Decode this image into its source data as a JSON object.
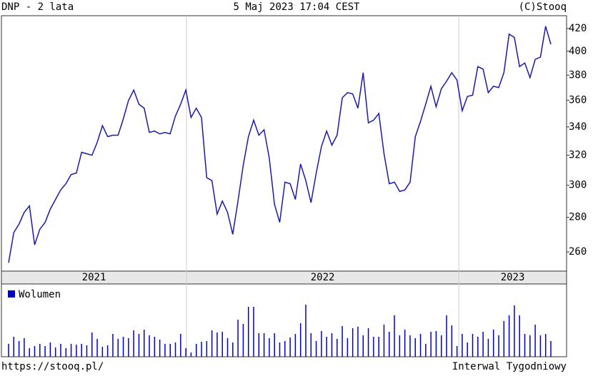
{
  "chart_data": {
    "type": "line",
    "title": "DNP - 2 lata",
    "subtitle": "5 Maj 2023 17:04 CEST",
    "credit": "(C)Stooq",
    "source": "https://stooq.pl/",
    "interval": "Interwal Tygodniowy",
    "color": "#1a1aaa",
    "log_scale": true,
    "values": [
      254,
      271,
      276,
      283,
      287,
      264,
      273,
      277,
      285,
      291,
      297,
      301,
      307,
      308,
      322,
      321,
      320,
      329,
      341,
      333,
      334,
      334,
      346,
      360,
      368,
      357,
      354,
      336,
      337,
      335,
      336,
      335,
      348,
      357,
      368,
      347,
      354,
      347,
      305,
      303,
      282,
      290,
      283,
      270,
      290,
      313,
      333,
      345,
      334,
      338,
      318,
      288,
      277,
      302,
      301,
      291,
      314,
      303,
      289,
      308,
      326,
      337,
      327,
      334,
      362,
      366,
      365,
      354,
      382,
      343,
      345,
      350,
      321,
      301,
      302,
      296,
      297,
      302,
      333,
      344,
      357,
      371,
      355,
      369,
      375,
      382,
      376,
      352,
      363,
      364,
      387,
      385,
      366,
      371,
      370,
      382,
      415,
      412,
      387,
      390,
      378,
      393,
      395,
      422,
      406
    ],
    "ylim": [
      249.5,
      431.7
    ],
    "yticks": [
      260,
      280,
      300,
      320,
      340,
      360,
      380,
      400,
      420
    ],
    "xlim": [
      2021.32,
      2023.396
    ],
    "xticks": [
      2021,
      2022,
      2023
    ],
    "volume": {
      "name": "Wolumen",
      "color": "#0000cc",
      "ylim": [
        0,
        100
      ],
      "values": [
        18,
        28,
        22,
        26,
        12,
        15,
        18,
        15,
        20,
        13,
        18,
        12,
        18,
        17,
        18,
        16,
        34,
        25,
        14,
        16,
        32,
        25,
        28,
        26,
        37,
        32,
        38,
        30,
        28,
        24,
        18,
        18,
        20,
        32,
        12,
        6,
        18,
        21,
        22,
        37,
        34,
        35,
        26,
        20,
        52,
        46,
        70,
        70,
        33,
        33,
        26,
        33,
        20,
        22,
        27,
        32,
        47,
        73,
        33,
        22,
        36,
        28,
        33,
        25,
        43,
        26,
        40,
        42,
        30,
        40,
        28,
        28,
        45,
        35,
        58,
        30,
        38,
        30,
        26,
        32,
        18,
        35,
        36,
        30,
        58,
        44,
        15,
        32,
        20,
        32,
        28,
        35,
        25,
        38,
        30,
        50,
        58,
        72,
        58,
        32,
        30,
        45,
        30,
        32,
        22
      ]
    }
  }
}
